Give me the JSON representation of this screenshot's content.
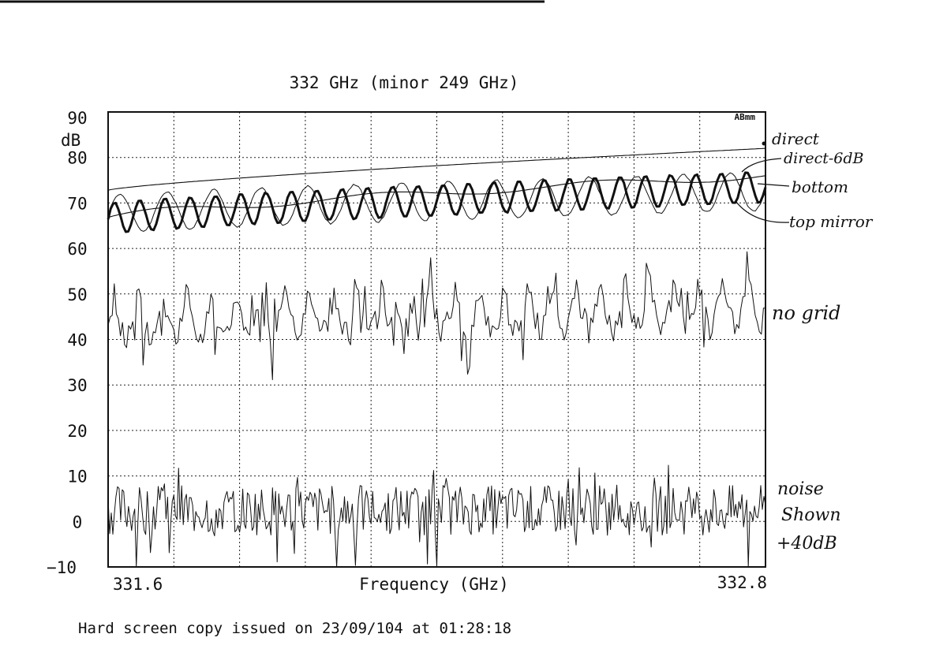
{
  "chart_data": {
    "type": "line",
    "title": "332 GHz (minor 249 GHz)",
    "xlabel": "Frequency (GHz)",
    "ylabel": "dB",
    "xlim": [
      331.6,
      332.8
    ],
    "ylim": [
      -10,
      90
    ],
    "x_tick_labels": [
      "331.6",
      "332.8"
    ],
    "y_ticks": [
      90,
      80,
      70,
      60,
      50,
      40,
      30,
      20,
      10,
      0,
      -10
    ],
    "y_tick_labels": [
      "90",
      "80",
      "70",
      "60",
      "50",
      "40",
      "30",
      "20",
      "10",
      "0",
      "−10"
    ],
    "y_unit": "dB",
    "grid": true,
    "legend": "none",
    "corner_label": "ABmm",
    "series": [
      {
        "name": "direct",
        "kind": "trend",
        "start": 72.8,
        "end": 82.0,
        "curve": 1.3,
        "ripple_amp": 0,
        "ripple_periods": 0,
        "noise": 0,
        "seed": 1,
        "width": 1.1
      },
      {
        "name": "direct-6dB",
        "kind": "trend",
        "start": 66.8,
        "end": 76.0,
        "curve": 1.3,
        "ripple_amp": 0.8,
        "ripple_periods": 3,
        "noise": 0,
        "seed": 2,
        "width": 1.1
      },
      {
        "name": "bottom",
        "kind": "ripple",
        "start": 66.5,
        "end": 73.5,
        "curve": 1.3,
        "ripple_amp": 3.4,
        "ripple_periods": 26,
        "noise": 0.3,
        "seed": 3,
        "width": 3.0
      },
      {
        "name": "top mirror",
        "kind": "ripple",
        "start": 67.5,
        "end": 72.5,
        "curve": 1.3,
        "ripple_amp": 4.2,
        "ripple_periods": 14,
        "noise": 0.4,
        "seed": 4,
        "width": 1.0
      },
      {
        "name": "no grid",
        "kind": "noisy",
        "start": 43.0,
        "end": 46.0,
        "curve": 1.0,
        "ripple_amp": 6.5,
        "ripple_periods": 27,
        "noise": 2.8,
        "seed": 5,
        "width": 1.0,
        "points": 320
      },
      {
        "name": "noise shown +40dB",
        "kind": "noise",
        "start": 2.5,
        "end": 2.5,
        "curve": 1.0,
        "ripple_amp": 0,
        "ripple_periods": 0,
        "noise": 5.5,
        "seed": 6,
        "width": 1.0,
        "points": 420
      }
    ],
    "annotations": [
      "direct",
      "direct-6dB",
      "bottom",
      "top mirror",
      "no grid",
      "noise",
      "Shown",
      "+40dB"
    ]
  },
  "footer": {
    "text": "Hard screen copy issued on 23/09/104 at 01:28:18"
  }
}
